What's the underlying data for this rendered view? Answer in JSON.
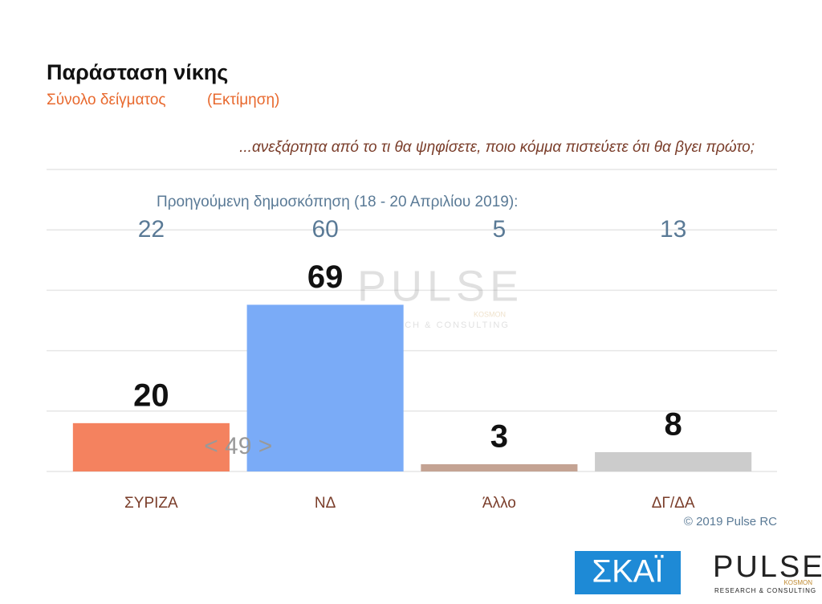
{
  "header": {
    "title": "Παράσταση νίκης",
    "subtitle": "Σύνολο δείγματος",
    "note": "(Εκτίμηση)"
  },
  "chart_data": {
    "type": "bar",
    "question": "...ανεξάρτητα από το τι θα ψηφίσετε, ποιο κόμμα πιστεύετε ότι θα βγει πρώτο;",
    "previous_label": "Προηγούμενη δημοσκόπηση (18 - 20 Απριλίου 2019):",
    "previous_values": [
      22,
      60,
      5,
      13
    ],
    "categories": [
      "ΣΥΡΙΖΑ",
      "ΝΔ",
      "Άλλο",
      "ΔΓ/ΔΑ"
    ],
    "values": [
      20,
      69,
      3,
      8
    ],
    "colors": [
      "#f4825f",
      "#7aabf7",
      "#c4a393",
      "#cccccc"
    ],
    "difference_label": "< 49 >",
    "ylim": [
      0,
      125
    ],
    "yticks": [
      0,
      25,
      50,
      75,
      100,
      125
    ],
    "grid": true
  },
  "footer": {
    "copyright": "© 2019 Pulse RC",
    "logo_skai": "ΣΚΑΪ",
    "logo_pulse": "PULSE",
    "logo_kosmon": "KOSMON",
    "logo_tagline": "RESEARCH & CONSULTING"
  }
}
